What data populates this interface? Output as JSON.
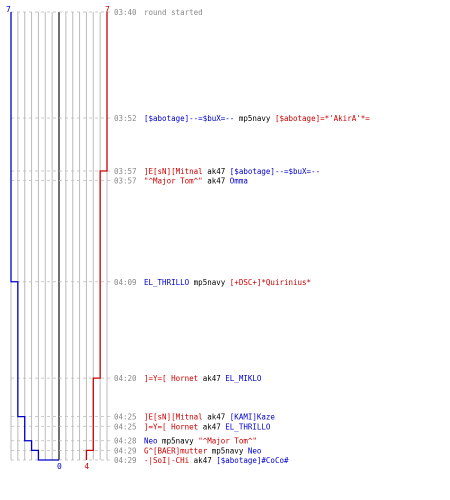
{
  "chart_data": {
    "type": "line",
    "title": "",
    "xlabel": "",
    "ylabel": "",
    "axis": {
      "min": 0,
      "max": 7,
      "top_left_label": "7",
      "top_right_label": "7",
      "bottom_labels": [
        "0",
        "4"
      ]
    },
    "colors": {
      "blue": "#0000cc",
      "red": "#cc0000",
      "gray": "#888888",
      "grid": "#bbbbbb",
      "center": "#333333",
      "white": "#000000"
    },
    "series": [
      {
        "color": "blue",
        "side": "left",
        "values": [
          7,
          7,
          6,
          6,
          5,
          4,
          3,
          3
        ]
      },
      {
        "color": "red",
        "side": "right",
        "values": [
          7,
          6,
          6,
          5,
          5,
          5,
          4,
          4
        ]
      }
    ],
    "events": [
      {
        "t": 0.0,
        "time": "03:40",
        "parts": [
          {
            "text": "round started",
            "c": "gray"
          }
        ]
      },
      {
        "t": 0.11,
        "time": "03:52",
        "parts": [
          {
            "text": "[$abotage]--=$buX=--",
            "c": "blue"
          },
          {
            "text": " mp5navy ",
            "c": "white"
          },
          {
            "text": "[$abotage]=*'AkirA'*=",
            "c": "red"
          }
        ]
      },
      {
        "t": 0.165,
        "time": "03:57",
        "parts": [
          {
            "text": "]E[sN][Mitnal",
            "c": "red"
          },
          {
            "text": " ak47 ",
            "c": "white"
          },
          {
            "text": "[$abotage]--=$buX=--",
            "c": "blue"
          }
        ]
      },
      {
        "t": 0.175,
        "time": "03:57",
        "parts": [
          {
            "text": "\"^Major Tom^\"",
            "c": "red"
          },
          {
            "text": " ak47 ",
            "c": "white"
          },
          {
            "text": "Omma",
            "c": "blue"
          }
        ]
      },
      {
        "t": 0.28,
        "time": "04:09",
        "parts": [
          {
            "text": "EL_THRILLO",
            "c": "blue"
          },
          {
            "text": " mp5navy ",
            "c": "white"
          },
          {
            "text": "[+DSC+]*Quirinius*",
            "c": "red"
          }
        ]
      },
      {
        "t": 0.38,
        "time": "04:20",
        "parts": [
          {
            "text": "]=Y=[ Hornet",
            "c": "red"
          },
          {
            "text": " ak47 ",
            "c": "white"
          },
          {
            "text": "EL_MIKLO",
            "c": "blue"
          }
        ]
      },
      {
        "t": 0.42,
        "time": "04:25",
        "parts": [
          {
            "text": "]E[sN][Mitnal",
            "c": "red"
          },
          {
            "text": " ak47 ",
            "c": "white"
          },
          {
            "text": "[KAMI]Kaze",
            "c": "blue"
          }
        ]
      },
      {
        "t": 0.43,
        "time": "04:25",
        "parts": [
          {
            "text": "]=Y=[ Hornet",
            "c": "red"
          },
          {
            "text": " ak47 ",
            "c": "white"
          },
          {
            "text": "EL_THRILLO",
            "c": "blue"
          }
        ]
      },
      {
        "t": 0.445,
        "time": "04:28",
        "parts": [
          {
            "text": "Neo",
            "c": "blue"
          },
          {
            "text": " mp5navy ",
            "c": "white"
          },
          {
            "text": "\"^Major Tom^\"",
            "c": "red"
          }
        ]
      },
      {
        "t": 0.455,
        "time": "04:29",
        "parts": [
          {
            "text": "G^[BAER]mutter",
            "c": "red"
          },
          {
            "text": " mp5navy ",
            "c": "white"
          },
          {
            "text": "Neo",
            "c": "blue"
          }
        ]
      },
      {
        "t": 0.465,
        "time": "04:29",
        "parts": [
          {
            "text": "-|SoI|-CHi",
            "c": "red"
          },
          {
            "text": " ak47 ",
            "c": "white"
          },
          {
            "text": "[$abotage]#CoCo#",
            "c": "blue"
          }
        ]
      }
    ]
  }
}
